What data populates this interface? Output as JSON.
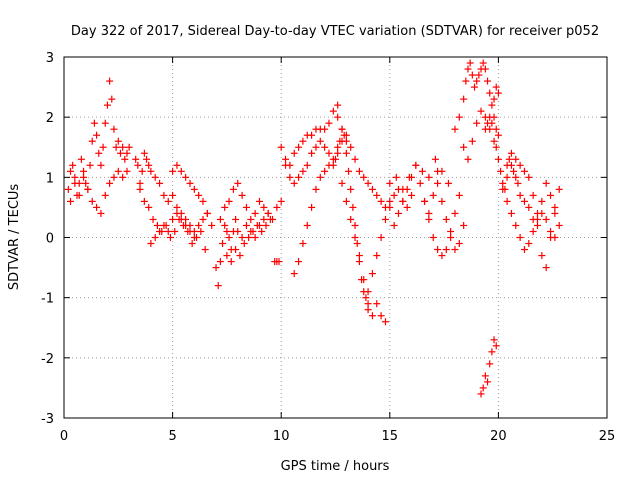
{
  "chart_data": {
    "type": "scatter",
    "title": "Day 322 of 2017, Sidereal Day-to-day VTEC variation (SDTVAR) for receiver p052",
    "xlabel": "GPS time / hours",
    "ylabel": "SDTVAR / TECUs",
    "xlim": [
      0,
      25
    ],
    "ylim": [
      -3,
      3
    ],
    "xticks": [
      0,
      5,
      10,
      15,
      20,
      25
    ],
    "yticks": [
      -3,
      -2,
      -1,
      0,
      1,
      2,
      3
    ],
    "xtick_labels": [
      "0",
      "5",
      "10",
      "15",
      "20",
      "25"
    ],
    "ytick_labels": [
      "-3",
      "-2",
      "-1",
      "0",
      "1",
      "2",
      "3"
    ],
    "grid": true,
    "marker": "+",
    "color": "#ff0000",
    "series": [
      {
        "name": "p052",
        "x": [
          0.2,
          0.3,
          0.4,
          0.5,
          0.6,
          0.7,
          0.8,
          0.9,
          1.0,
          1.1,
          1.2,
          1.3,
          1.4,
          1.5,
          1.6,
          1.7,
          1.8,
          1.9,
          2.0,
          2.1,
          2.2,
          2.3,
          2.4,
          2.5,
          2.6,
          2.7,
          2.8,
          2.9,
          3.0,
          0.3,
          0.5,
          0.7,
          0.9,
          1.1,
          1.3,
          1.5,
          1.7,
          1.9,
          2.1,
          2.3,
          2.5,
          2.7,
          2.9,
          3.3,
          3.4,
          3.5,
          3.6,
          3.7,
          3.8,
          3.9,
          4.0,
          4.2,
          4.4,
          4.6,
          4.8,
          5.0,
          5.2,
          5.4,
          5.6,
          5.8,
          6.0,
          6.2,
          6.4,
          6.6,
          6.8,
          3.5,
          3.7,
          3.9,
          4.1,
          4.3,
          4.5,
          4.7,
          4.9,
          5.1,
          5.3,
          5.5,
          5.7,
          5.9,
          6.1,
          6.3,
          6.5,
          4.0,
          4.2,
          4.4,
          4.6,
          4.8,
          5.0,
          5.2,
          5.4,
          5.6,
          5.8,
          6.0,
          5.0,
          5.2,
          5.4,
          5.6,
          5.8,
          6.0,
          6.2,
          6.4,
          6.6,
          7.0,
          7.1,
          7.2,
          7.3,
          7.4,
          7.5,
          7.6,
          7.7,
          7.8,
          7.9,
          8.0,
          8.2,
          8.4,
          8.6,
          8.8,
          9.0,
          9.2,
          9.4,
          9.6,
          9.8,
          10.0,
          7.2,
          7.4,
          7.6,
          7.8,
          8.0,
          8.2,
          8.4,
          8.6,
          8.8,
          9.0,
          9.2,
          9.4,
          7.5,
          7.7,
          7.9,
          8.1,
          8.3,
          8.5,
          8.7,
          8.9,
          9.1,
          9.3,
          9.5,
          9.7,
          9.8,
          9.9,
          10.0,
          10.2,
          10.4,
          10.6,
          10.8,
          11.0,
          11.2,
          11.4,
          11.6,
          11.8,
          12.0,
          12.2,
          12.4,
          12.6,
          10.2,
          10.4,
          10.6,
          10.8,
          11.0,
          11.2,
          11.4,
          11.6,
          11.8,
          12.0,
          12.2,
          10.6,
          10.8,
          11.0,
          11.2,
          11.4,
          11.6,
          11.8,
          12.0,
          12.2,
          12.4,
          12.6,
          12.8,
          13.0,
          12.4,
          12.5,
          12.6,
          12.7,
          12.8,
          12.9,
          13.0,
          13.1,
          13.2,
          13.3,
          13.4,
          13.5,
          13.6,
          13.7,
          13.8,
          13.9,
          14.0,
          12.6,
          12.8,
          13.0,
          13.2,
          13.4,
          13.6,
          13.8,
          14.0,
          14.2,
          14.4,
          14.6,
          14.8,
          15.0,
          12.8,
          13.0,
          13.2,
          13.4,
          13.6,
          13.8,
          14.0,
          14.2,
          14.4,
          14.6,
          14.8,
          15.0,
          15.2,
          15.4,
          15.6,
          15.8,
          16.0,
          14.0,
          14.2,
          14.4,
          14.6,
          14.8,
          15.2,
          15.4,
          15.6,
          15.8,
          16.0,
          16.2,
          16.4,
          16.6,
          16.8,
          17.0,
          17.2,
          15.0,
          15.3,
          15.6,
          15.9,
          16.2,
          16.5,
          16.8,
          17.1,
          17.4,
          17.7,
          16.6,
          16.8,
          17.0,
          17.2,
          17.4,
          17.6,
          17.8,
          18.0,
          18.2,
          17.2,
          17.4,
          17.6,
          17.8,
          18.0,
          18.2,
          18.4,
          18.0,
          18.2,
          18.4,
          18.5,
          18.6,
          18.7,
          18.8,
          18.9,
          19.0,
          19.1,
          19.2,
          19.3,
          19.4,
          19.5,
          19.6,
          19.7,
          19.8,
          19.9,
          20.0,
          18.4,
          18.6,
          18.8,
          19.0,
          19.2,
          19.4,
          19.6,
          19.8,
          20.0,
          19.2,
          19.3,
          19.4,
          19.5,
          19.6,
          19.7,
          19.8,
          19.9,
          19.4,
          19.5,
          19.6,
          19.7,
          19.8,
          19.9,
          19.9,
          20.0,
          20.1,
          20.2,
          20.3,
          20.4,
          20.5,
          20.6,
          20.7,
          20.8,
          20.9,
          21.0,
          21.2,
          21.4,
          21.6,
          21.8,
          22.0,
          22.2,
          22.4,
          22.6,
          22.8,
          20.2,
          20.4,
          20.6,
          20.8,
          21.0,
          21.2,
          21.4,
          21.6,
          21.8,
          22.0,
          22.2,
          22.4,
          22.6,
          22.8,
          20.4,
          20.6,
          20.8,
          21.0,
          21.2,
          21.4,
          21.6,
          21.8,
          22.0,
          22.2,
          22.4,
          22.6
        ],
        "y": [
          0.8,
          1.1,
          1.2,
          1.0,
          0.7,
          0.9,
          1.3,
          1.1,
          0.9,
          0.8,
          1.2,
          1.6,
          1.9,
          1.7,
          1.4,
          1.2,
          1.5,
          1.9,
          2.2,
          2.6,
          2.3,
          1.8,
          1.5,
          1.6,
          1.4,
          1.5,
          1.3,
          1.4,
          1.5,
          0.6,
          0.9,
          0.7,
          1.0,
          0.8,
          0.6,
          0.5,
          0.4,
          0.7,
          0.9,
          1.0,
          1.1,
          1.0,
          1.1,
          1.3,
          1.2,
          0.9,
          1.1,
          1.4,
          1.3,
          1.2,
          1.1,
          1.0,
          0.9,
          0.7,
          0.6,
          0.7,
          0.5,
          0.4,
          0.3,
          0.2,
          0.1,
          0.2,
          0.3,
          0.4,
          0.2,
          0.8,
          0.6,
          0.5,
          0.3,
          0.2,
          0.1,
          0.2,
          0.0,
          0.1,
          0.3,
          0.2,
          0.1,
          -0.1,
          0.0,
          0.1,
          -0.2,
          -0.1,
          0.0,
          0.1,
          0.2,
          0.1,
          0.3,
          0.4,
          0.3,
          0.2,
          0.1,
          0.0,
          1.1,
          1.2,
          1.1,
          1.0,
          0.9,
          0.8,
          0.7,
          0.6,
          0.4,
          -0.5,
          -0.8,
          -0.4,
          -0.1,
          0.2,
          0.1,
          0.0,
          -0.2,
          0.1,
          0.3,
          0.1,
          0.0,
          0.2,
          0.1,
          0.0,
          0.2,
          0.3,
          0.4,
          0.3,
          0.5,
          0.6,
          0.3,
          0.5,
          0.6,
          0.8,
          0.9,
          0.7,
          0.5,
          0.3,
          0.4,
          0.6,
          0.5,
          0.4,
          -0.3,
          -0.4,
          -0.2,
          -0.3,
          -0.1,
          0.0,
          0.1,
          0.2,
          0.1,
          0.2,
          0.3,
          -0.4,
          -0.4,
          -0.4,
          1.5,
          1.3,
          1.2,
          1.4,
          1.5,
          1.6,
          1.7,
          1.7,
          1.8,
          1.8,
          1.8,
          1.9,
          2.1,
          2.2,
          1.2,
          1.0,
          0.9,
          1.0,
          1.1,
          1.2,
          1.4,
          1.5,
          1.6,
          1.5,
          1.4,
          -0.6,
          -0.4,
          -0.1,
          0.2,
          0.5,
          0.8,
          1.0,
          1.1,
          1.2,
          1.3,
          1.5,
          1.6,
          1.7,
          1.2,
          1.3,
          1.4,
          1.6,
          1.8,
          1.7,
          1.4,
          1.1,
          0.8,
          0.5,
          0.2,
          -0.1,
          -0.4,
          -0.7,
          -0.9,
          -1.0,
          -1.1,
          2.0,
          1.8,
          1.6,
          1.5,
          1.3,
          1.1,
          1.0,
          0.9,
          0.8,
          0.7,
          0.6,
          0.5,
          0.6,
          0.9,
          0.6,
          0.3,
          0.0,
          -0.3,
          -0.7,
          -0.9,
          -0.6,
          -0.3,
          0.0,
          0.3,
          0.5,
          0.7,
          0.8,
          0.6,
          0.5,
          0.7,
          -1.2,
          -1.3,
          -1.1,
          -1.3,
          -1.4,
          0.2,
          0.4,
          0.6,
          0.8,
          1.0,
          1.2,
          0.9,
          0.6,
          0.4,
          0.7,
          1.1,
          0.9,
          1.0,
          0.8,
          1.0,
          1.2,
          1.1,
          1.0,
          1.3,
          1.1,
          0.9,
          0.6,
          0.3,
          0.0,
          -0.2,
          -0.3,
          -0.2,
          0.1,
          0.4,
          0.7,
          0.9,
          0.6,
          0.3,
          0.0,
          -0.2,
          -0.1,
          0.2,
          1.8,
          2.0,
          2.3,
          2.6,
          2.8,
          2.9,
          2.7,
          2.5,
          2.6,
          2.7,
          2.8,
          2.9,
          2.8,
          2.6,
          2.4,
          2.2,
          2.3,
          2.5,
          2.4,
          1.5,
          1.3,
          1.6,
          1.9,
          2.1,
          2.0,
          1.8,
          1.6,
          1.7,
          -2.6,
          -2.5,
          -2.3,
          -2.4,
          -2.1,
          -1.9,
          -1.7,
          -1.8,
          1.8,
          1.9,
          2.0,
          1.9,
          2.0,
          1.8,
          1.5,
          1.3,
          1.1,
          0.9,
          0.8,
          1.0,
          1.3,
          1.2,
          1.1,
          1.0,
          0.9,
          0.7,
          0.6,
          0.5,
          0.3,
          0.2,
          0.4,
          0.3,
          0.1,
          0.0,
          0.2,
          0.8,
          0.6,
          0.4,
          0.2,
          0.0,
          -0.2,
          -0.1,
          0.1,
          0.3,
          0.6,
          0.9,
          0.7,
          0.5,
          0.8,
          1.2,
          1.4,
          1.3,
          1.2,
          1.1,
          1.0,
          0.7,
          0.4,
          -0.3,
          -0.5,
          0.0,
          0.4
        ]
      }
    ]
  }
}
